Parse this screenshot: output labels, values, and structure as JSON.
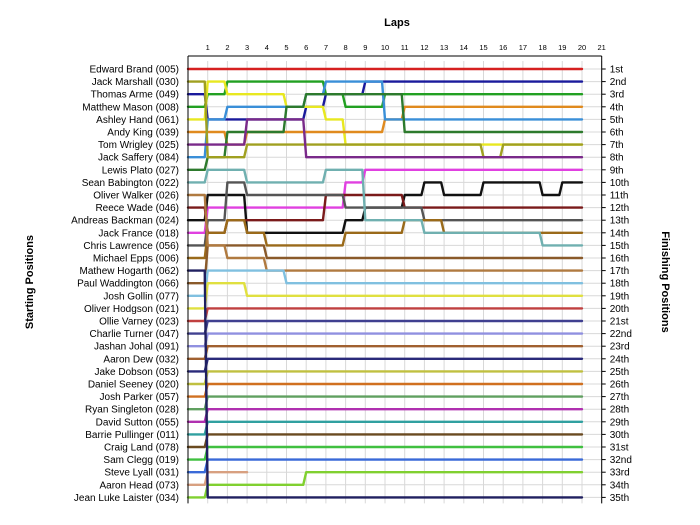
{
  "chart_data": {
    "type": "line",
    "title": "Laps",
    "ylabel_left": "Starting Positions",
    "ylabel_right": "Finishing Positions",
    "laps": [
      1,
      2,
      3,
      4,
      5,
      6,
      7,
      8,
      9,
      10,
      11,
      12,
      13,
      14,
      15,
      16,
      17,
      18,
      19,
      20,
      21
    ],
    "x_tick_labels": [
      "1",
      "2",
      "3",
      "4",
      "5",
      "6",
      "7",
      "8",
      "9",
      "10",
      "11",
      "12",
      "13",
      "14",
      "15",
      "16",
      "17",
      "18",
      "19",
      "20",
      "21"
    ],
    "drivers": [
      "Edward Brand (005)",
      "Jack Marshall (030)",
      "Thomas Arme (049)",
      "Matthew Mason (008)",
      "Ashley Hand (061)",
      "Andy King (039)",
      "Tom Wrigley (025)",
      "Jack Saffery (084)",
      "Lewis Plato (027)",
      "Sean Babington (022)",
      "Oliver Walker (026)",
      "Reece Wade (046)",
      "Andreas Backman (024)",
      "Jack France (018)",
      "Chris Lawrence (056)",
      "Michael Epps (006)",
      "Mathew Hogarth (062)",
      "Paul Waddington (066)",
      "Josh Gollin (077)",
      "Oliver Hodgson (021)",
      "Ollie Varney (023)",
      "Charlie Turner (047)",
      "Jashan Johal (091)",
      "Aaron Dew (032)",
      "Jake Dobson (053)",
      "Daniel Seeney (020)",
      "Josh Parker (057)",
      "Ryan Singleton (028)",
      "David Sutton (055)",
      "Barrie Pullinger (011)",
      "Craig Land (078)",
      "Sam Clegg (019)",
      "Steve Lyall (031)",
      "Aaron Head (073)",
      "Jean Luke Laister (034)"
    ],
    "finishing_labels": [
      "1st",
      "2nd",
      "3rd",
      "4th",
      "5th",
      "6th",
      "7th",
      "8th",
      "9th",
      "10th",
      "11th",
      "12th",
      "13th",
      "14th",
      "15th",
      "16th",
      "17th",
      "18th",
      "19th",
      "20th",
      "21st",
      "22nd",
      "23rd",
      "24th",
      "25th",
      "26th",
      "27th",
      "28th",
      "29th",
      "30th",
      "31st",
      "32nd",
      "33rd",
      "34th",
      "35th"
    ],
    "grid": true,
    "series": [
      {
        "color": "#d62020",
        "values": [
          1,
          1,
          1,
          1,
          1,
          1,
          1,
          1,
          1,
          1,
          1,
          1,
          1,
          1,
          1,
          1,
          1,
          1,
          1,
          1,
          1
        ]
      },
      {
        "color": "#1a1a9c",
        "values": [
          3,
          5,
          5,
          5,
          5,
          5,
          4,
          3,
          3,
          2,
          2,
          2,
          2,
          2,
          2,
          2,
          2,
          2,
          2,
          2,
          2
        ]
      },
      {
        "color": "#22a022",
        "values": [
          4,
          3,
          2,
          2,
          2,
          2,
          2,
          3,
          4,
          4,
          3,
          3,
          3,
          3,
          3,
          3,
          3,
          3,
          3,
          3,
          3
        ]
      },
      {
        "color": "#e8e820",
        "values": [
          5,
          2,
          3,
          3,
          3,
          4,
          4,
          5,
          7,
          7,
          7,
          7,
          7,
          7,
          7,
          7,
          7,
          7,
          7,
          7,
          7
        ]
      },
      {
        "color": "#e08a1e",
        "values": [
          6,
          6,
          7,
          6,
          6,
          6,
          6,
          6,
          6,
          6,
          5,
          4,
          4,
          4,
          4,
          4,
          4,
          4,
          4,
          4,
          4
        ]
      },
      {
        "color": "#3a8fd8",
        "values": [
          8,
          5,
          4,
          4,
          4,
          4,
          3,
          2,
          2,
          2,
          5,
          5,
          5,
          5,
          5,
          5,
          5,
          5,
          5,
          5,
          5
        ]
      },
      {
        "color": "#2d7a2d",
        "values": [
          9,
          8,
          6,
          6,
          6,
          4,
          3,
          3,
          3,
          3,
          3,
          6,
          6,
          6,
          6,
          6,
          6,
          6,
          6,
          6,
          6
        ]
      },
      {
        "color": "#a0a020",
        "values": [
          2,
          8,
          8,
          7,
          7,
          7,
          7,
          7,
          7,
          7,
          7,
          7,
          7,
          7,
          7,
          8,
          7,
          7,
          7,
          7,
          7
        ]
      },
      {
        "color": "#7a2a8a",
        "values": [
          7,
          7,
          7,
          5,
          5,
          5,
          8,
          8,
          8,
          8,
          8,
          8,
          8,
          8,
          8,
          8,
          8,
          8,
          8,
          8,
          8
        ]
      },
      {
        "color": "#e040e0",
        "values": [
          14,
          12,
          12,
          12,
          12,
          12,
          12,
          12,
          10,
          9,
          9,
          9,
          9,
          9,
          9,
          9,
          9,
          9,
          9,
          9,
          9
        ]
      },
      {
        "color": "#111111",
        "values": [
          13,
          11,
          11,
          14,
          14,
          14,
          14,
          14,
          13,
          12,
          12,
          11,
          10,
          11,
          11,
          10,
          10,
          10,
          11,
          10,
          10
        ]
      },
      {
        "color": "#7a1a1a",
        "values": [
          12,
          14,
          13,
          13,
          13,
          13,
          13,
          11,
          11,
          11,
          11,
          12,
          12,
          12,
          12,
          12,
          12,
          12,
          12,
          12,
          12
        ]
      },
      {
        "color": "#555555",
        "values": [
          15,
          13,
          10,
          11,
          11,
          11,
          11,
          11,
          12,
          12,
          12,
          12,
          13,
          13,
          13,
          13,
          13,
          13,
          13,
          13,
          13
        ]
      },
      {
        "color": "#9a6a1a",
        "values": [
          16,
          14,
          13,
          14,
          15,
          15,
          15,
          15,
          14,
          14,
          14,
          13,
          13,
          14,
          14,
          14,
          14,
          14,
          14,
          14,
          14
        ]
      },
      {
        "color": "#70b0b0",
        "values": [
          10,
          9,
          9,
          10,
          10,
          10,
          10,
          9,
          9,
          13,
          13,
          13,
          14,
          14,
          14,
          14,
          14,
          14,
          15,
          15,
          15
        ]
      },
      {
        "color": "#8a5a2a",
        "values": [
          18,
          15,
          15,
          15,
          16,
          16,
          16,
          16,
          16,
          16,
          16,
          16,
          16,
          16,
          16,
          16,
          16,
          16,
          16,
          16,
          16
        ]
      },
      {
        "color": "#b07a40",
        "values": [
          11,
          15,
          16,
          16,
          17,
          17,
          17,
          17,
          17,
          17,
          17,
          17,
          17,
          17,
          17,
          17,
          17,
          17,
          17,
          17,
          17
        ]
      },
      {
        "color": "#80c0e0",
        "values": [
          19,
          17,
          17,
          17,
          17,
          18,
          18,
          18,
          18,
          18,
          18,
          18,
          18,
          18,
          18,
          18,
          18,
          18,
          18,
          18,
          18
        ]
      },
      {
        "color": "#e0e040",
        "values": [
          20,
          18,
          18,
          19,
          19,
          19,
          19,
          19,
          19,
          19,
          19,
          19,
          19,
          19,
          19,
          19,
          19,
          19,
          19,
          19,
          19
        ]
      },
      {
        "color": "#c04040",
        "values": [
          21,
          20,
          20,
          20,
          20,
          20,
          20,
          20,
          20,
          20,
          20,
          20,
          20,
          20,
          20,
          20,
          20,
          20,
          20,
          20,
          20
        ]
      },
      {
        "color": "#404090",
        "values": [
          22,
          21,
          21,
          21,
          21,
          21,
          21,
          21,
          21,
          21,
          21,
          21,
          21,
          21,
          21,
          21,
          21,
          21,
          21,
          21,
          21
        ]
      },
      {
        "color": "#9090e0",
        "values": [
          23,
          22,
          22,
          22,
          22,
          22,
          22,
          22,
          22,
          22,
          22,
          22,
          22,
          22,
          22,
          22,
          22,
          22,
          22,
          22,
          22
        ]
      },
      {
        "color": "#a06030",
        "values": [
          24,
          23,
          23,
          23,
          23,
          23,
          23,
          23,
          23,
          23,
          23,
          23,
          23,
          23,
          23,
          23,
          23,
          23,
          23,
          23,
          23
        ]
      },
      {
        "color": "#2a2a7a",
        "values": [
          25,
          24,
          24,
          24,
          24,
          24,
          24,
          24,
          24,
          24,
          24,
          24,
          24,
          24,
          24,
          24,
          24,
          24,
          24,
          24,
          24
        ]
      },
      {
        "color": "#c0c040",
        "values": [
          26,
          25,
          25,
          25,
          25,
          25,
          25,
          25,
          25,
          25,
          25,
          25,
          25,
          25,
          25,
          25,
          25,
          25,
          25,
          25,
          25
        ]
      },
      {
        "color": "#d07020",
        "values": [
          27,
          26,
          26,
          26,
          26,
          26,
          26,
          26,
          26,
          26,
          26,
          26,
          26,
          26,
          26,
          26,
          26,
          26,
          26,
          26,
          26
        ]
      },
      {
        "color": "#60a060",
        "values": [
          28,
          27,
          27,
          27,
          27,
          27,
          27,
          27,
          27,
          27,
          27,
          27,
          27,
          27,
          27,
          27,
          27,
          27,
          27,
          27,
          27
        ]
      },
      {
        "color": "#b030b0",
        "values": [
          29,
          28,
          28,
          28,
          28,
          28,
          28,
          28,
          28,
          28,
          28,
          28,
          28,
          28,
          28,
          28,
          28,
          28,
          28,
          28,
          28
        ]
      },
      {
        "color": "#30a0a0",
        "values": [
          30,
          29,
          29,
          29,
          29,
          29,
          29,
          29,
          29,
          29,
          29,
          29,
          29,
          29,
          29,
          29,
          29,
          29,
          29,
          29,
          29
        ]
      },
      {
        "color": "#6a4a20",
        "values": [
          31,
          30,
          30,
          30,
          30,
          30,
          30,
          30,
          30,
          30,
          30,
          30,
          30,
          30,
          30,
          30,
          30,
          30,
          30,
          30,
          30
        ]
      },
      {
        "color": "#40c040",
        "values": [
          32,
          31,
          31,
          31,
          31,
          31,
          31,
          31,
          31,
          31,
          31,
          31,
          31,
          31,
          31,
          31,
          31,
          31,
          31,
          31,
          31
        ]
      },
      {
        "color": "#3a6ad8",
        "values": [
          33,
          32,
          32,
          32,
          32,
          32,
          32,
          32,
          32,
          32,
          32,
          32,
          32,
          32,
          32,
          32,
          32,
          32,
          32,
          32,
          32
        ]
      },
      {
        "color": "#d8a080",
        "values": [
          34,
          33,
          33,
          33,
          null,
          null,
          null,
          null,
          null,
          null,
          null,
          null,
          null,
          null,
          null,
          null,
          null,
          null,
          null,
          null,
          null
        ]
      },
      {
        "color": "#80d030",
        "values": [
          35,
          34,
          34,
          34,
          34,
          34,
          33,
          33,
          33,
          33,
          33,
          33,
          33,
          33,
          33,
          33,
          33,
          33,
          33,
          33,
          33
        ]
      },
      {
        "color": "#202060",
        "values": [
          17,
          35,
          35,
          35,
          35,
          35,
          35,
          35,
          35,
          35,
          35,
          35,
          35,
          35,
          35,
          35,
          35,
          35,
          35,
          35,
          35
        ]
      }
    ]
  }
}
